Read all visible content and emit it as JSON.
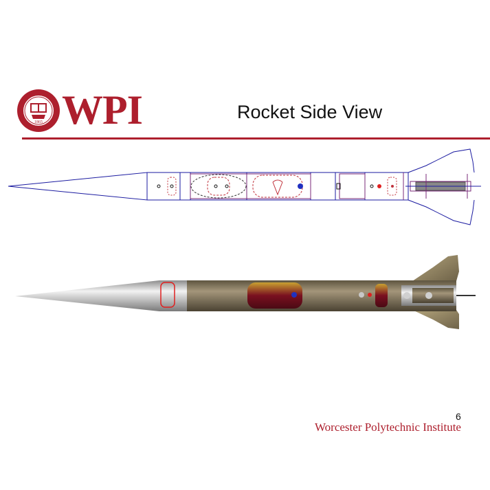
{
  "slide": {
    "logo_text": "WPI",
    "seal": {
      "ring_text": "WORCESTER POLYTECHNIC INSTITUTE",
      "year": "1865"
    },
    "title": "Rocket Side View",
    "page_number": "6",
    "footer": "Worcester Polytechnic Institute"
  },
  "colors": {
    "brand_red": "#ad1f2d",
    "drawing_blue": "#1a1aa0",
    "drawing_red": "#c0303a",
    "body_tan": "#8a7a5c",
    "fin_tan": "#9a8a62"
  }
}
